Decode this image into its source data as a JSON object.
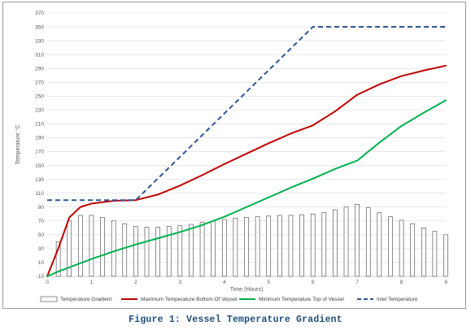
{
  "caption": "Figure 1: Vessel Temperature Gradient",
  "chart_data": {
    "type": "bar+line",
    "xlabel": "Time (Hours)",
    "ylabel": "Temperature °C",
    "xlim": [
      0,
      9
    ],
    "ylim": [
      -10,
      370
    ],
    "x_ticks": [
      0,
      1,
      2,
      3,
      4,
      5,
      6,
      7,
      8,
      9
    ],
    "y_ticks": [
      -10,
      10,
      30,
      50,
      70,
      90,
      110,
      130,
      150,
      170,
      190,
      210,
      230,
      250,
      270,
      290,
      310,
      330,
      350,
      370
    ],
    "grid": "horizontal",
    "legend_position": "bottom",
    "bars": {
      "name": "Temperature Gradient",
      "color": "#ffffff",
      "edge_color": "#404040",
      "x": [
        0.25,
        0.5,
        0.75,
        1.0,
        1.25,
        1.5,
        1.75,
        2.0,
        2.25,
        2.5,
        2.75,
        3.0,
        3.25,
        3.5,
        3.75,
        4.0,
        4.25,
        4.5,
        4.75,
        5.0,
        5.25,
        5.5,
        5.75,
        6.0,
        6.25,
        6.5,
        6.75,
        7.0,
        7.25,
        7.5,
        7.75,
        8.0,
        8.25,
        8.5,
        8.75,
        9.0
      ],
      "values": [
        40,
        70,
        78,
        78,
        75,
        70,
        66,
        62,
        61,
        61,
        62,
        63,
        65,
        68,
        70,
        72,
        74,
        75,
        76,
        77,
        78,
        78,
        79,
        80,
        82,
        86,
        90,
        94,
        89,
        82,
        76,
        71,
        66,
        60,
        55,
        50
      ]
    },
    "series": [
      {
        "name": "Maximum Temperature Bottom Of Vessel",
        "color": "#c00000",
        "style": "solid",
        "x": [
          0,
          0.25,
          0.5,
          0.75,
          1.0,
          1.5,
          2.0,
          2.5,
          3.0,
          3.5,
          4.0,
          4.5,
          5.0,
          5.5,
          6.0,
          6.5,
          7.0,
          7.5,
          8.0,
          8.5,
          9.0
        ],
        "y": [
          -10,
          30,
          75,
          90,
          95,
          99,
          100,
          108,
          121,
          136,
          152,
          167,
          182,
          196,
          208,
          228,
          252,
          267,
          279,
          287,
          294
        ]
      },
      {
        "name": "Minimum Temperature Top of Vessel",
        "color": "#00b050",
        "style": "solid",
        "x": [
          0,
          0.25,
          0.5,
          1.0,
          1.5,
          2.0,
          2.5,
          3.0,
          3.5,
          4.0,
          4.5,
          5.0,
          5.5,
          6.0,
          6.5,
          7.0,
          7.5,
          8.0,
          8.5,
          9.0
        ],
        "y": [
          -10,
          -3,
          3,
          15,
          26,
          36,
          45,
          54,
          64,
          76,
          90,
          104,
          118,
          131,
          145,
          157,
          183,
          207,
          226,
          244
        ]
      },
      {
        "name": "Inlet Temperature",
        "color": "#2f5597",
        "style": "dashed",
        "x": [
          0,
          1.0,
          2.0,
          6.0,
          9.0
        ],
        "y": [
          100,
          100,
          100,
          350,
          350
        ]
      }
    ]
  }
}
